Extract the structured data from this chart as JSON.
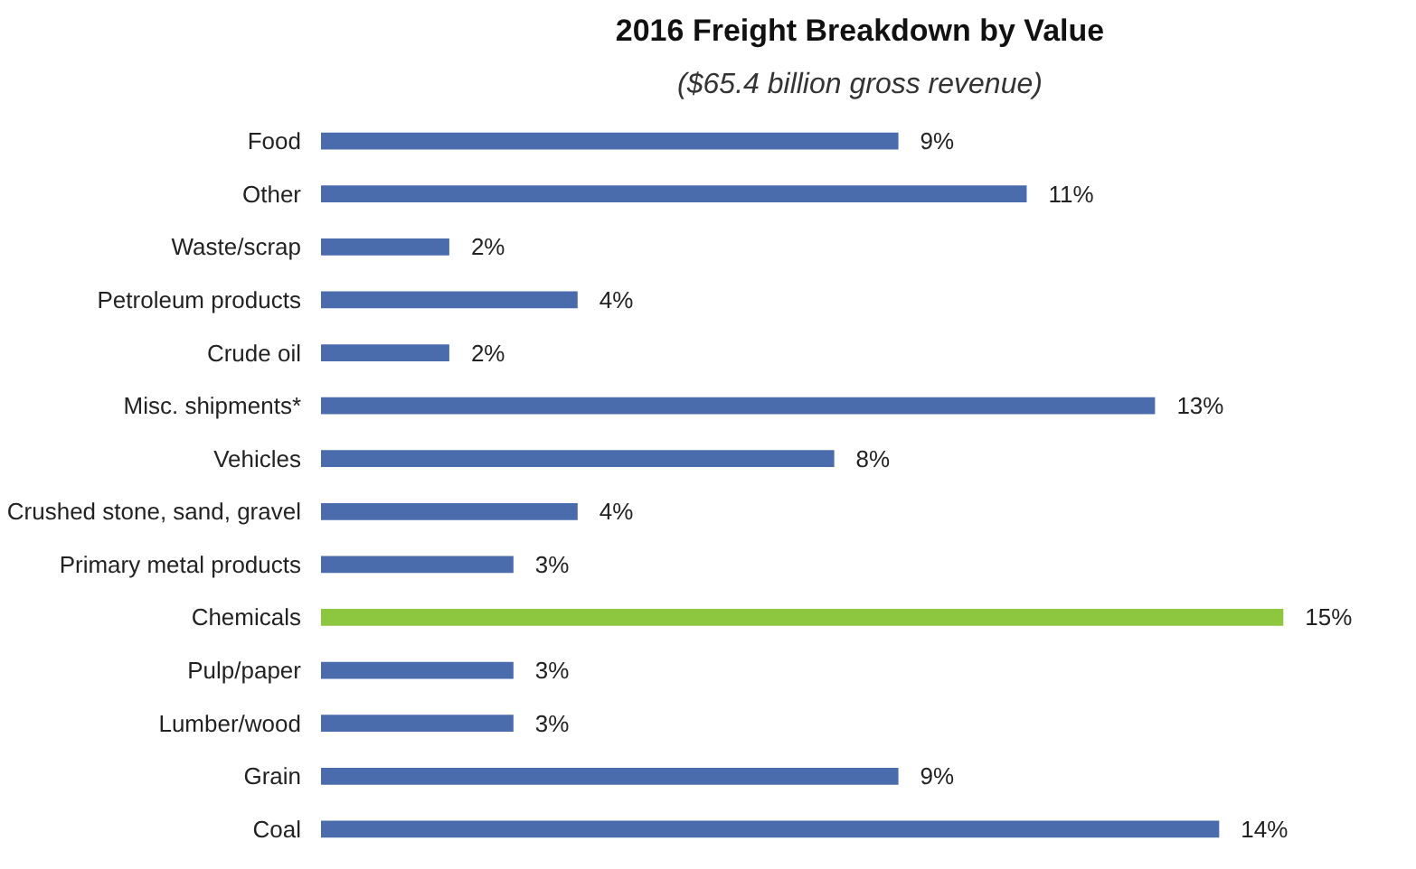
{
  "chart_data": {
    "type": "bar",
    "orientation": "horizontal",
    "title": "2016 Freight Breakdown by Value",
    "subtitle": "($65.4 billion gross revenue)",
    "categories": [
      "Food",
      "Other",
      "Waste/scrap",
      "Petroleum products",
      "Crude oil",
      "Misc. shipments*",
      "Vehicles",
      "Crushed stone, sand, gravel",
      "Primary metal products",
      "Chemicals",
      "Pulp/paper",
      "Lumber/wood",
      "Grain",
      "Coal"
    ],
    "values": [
      9,
      11,
      2,
      4,
      2,
      13,
      8,
      4,
      3,
      15,
      3,
      3,
      9,
      14
    ],
    "value_labels": [
      "9%",
      "11%",
      "2%",
      "4%",
      "2%",
      "13%",
      "8%",
      "4%",
      "3%",
      "15%",
      "3%",
      "3%",
      "9%",
      "14%"
    ],
    "colors": [
      "#4a6cad",
      "#4a6cad",
      "#4a6cad",
      "#4a6cad",
      "#4a6cad",
      "#4a6cad",
      "#4a6cad",
      "#4a6cad",
      "#4a6cad",
      "#8dc63f",
      "#4a6cad",
      "#4a6cad",
      "#4a6cad",
      "#4a6cad"
    ],
    "grid": false
  }
}
